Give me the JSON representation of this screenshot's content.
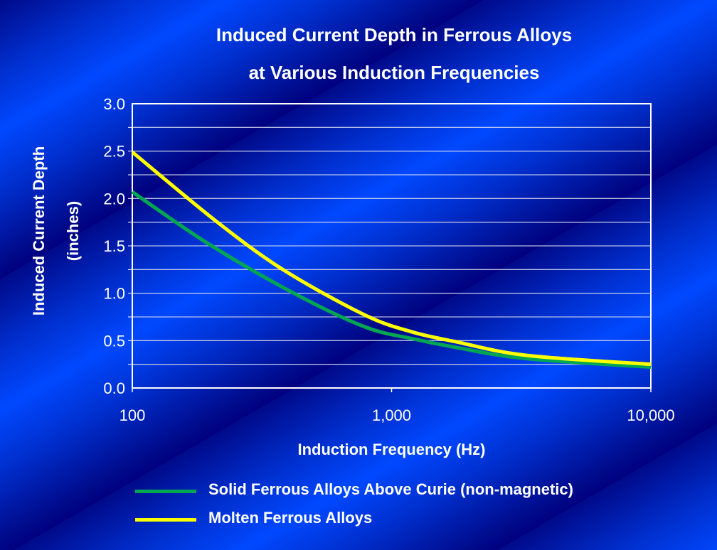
{
  "chart_data": {
    "type": "line",
    "title": [
      "Induced Current Depth in Ferrous Alloys",
      "at Various Induction Frequencies"
    ],
    "xlabel": "Induction Frequency (Hz)",
    "ylabel": [
      "Induced Current Depth",
      "(inches)"
    ],
    "x_scale": "log",
    "xlim": [
      100,
      10000
    ],
    "ylim": [
      0,
      3
    ],
    "x_ticks": [
      100,
      1000,
      10000
    ],
    "x_tick_labels": [
      "100",
      "1,000",
      "10,000"
    ],
    "y_ticks": [
      0,
      0.5,
      1,
      1.5,
      2,
      2.5,
      3
    ],
    "y_tick_labels": [
      "0.0",
      "0.5",
      "1.0",
      "1.5",
      "2.0",
      "2.5",
      "3.0"
    ],
    "grid": "horizontal",
    "legend_position": "bottom",
    "series": [
      {
        "name": "Solid Ferrous Alloys Above Curie (non-magnetic)",
        "color": "#00a651",
        "x": [
          100,
          197,
          420,
          789,
          1205,
          1758,
          3300,
          10000
        ],
        "y": [
          2.07,
          1.52,
          1.0,
          0.645,
          0.52,
          0.43,
          0.31,
          0.22
        ]
      },
      {
        "name": "Molten Ferrous Alloys",
        "color": "#ffff00",
        "x": [
          100,
          214,
          386,
          789,
          1205,
          1758,
          3300,
          10000
        ],
        "y": [
          2.49,
          1.745,
          1.24,
          0.77,
          0.59,
          0.49,
          0.345,
          0.25
        ]
      }
    ]
  }
}
